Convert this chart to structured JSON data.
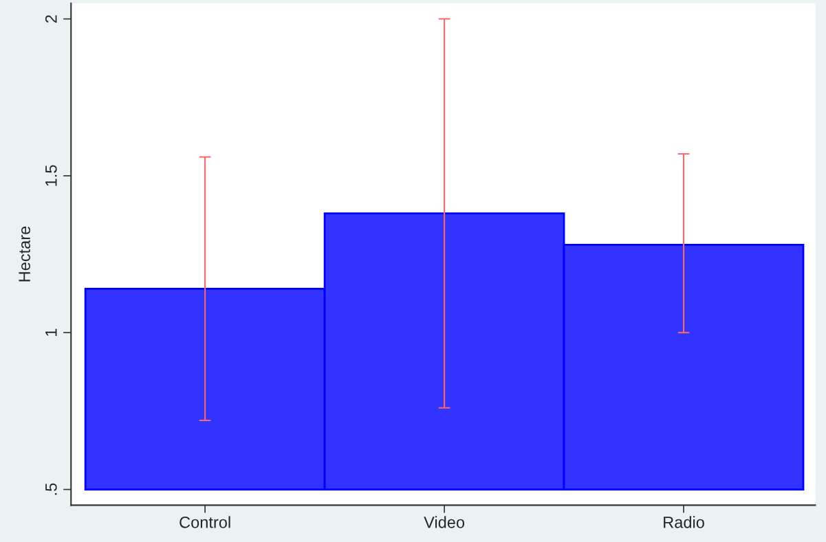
{
  "chart_data": {
    "type": "bar",
    "ylabel": "Hectare",
    "categories": [
      "Control",
      "Video",
      "Radio"
    ],
    "base": [
      0.5,
      0.5,
      0.5
    ],
    "values": [
      0.64,
      0.88,
      0.78
    ],
    "color": "#3333ff",
    "errors": [
      [
        0.72,
        1.56
      ],
      [
        0.76,
        2.0
      ],
      [
        1.0,
        1.57
      ]
    ],
    "ylim": [
      0.45,
      2.05
    ],
    "yticks": [
      {
        "value": 0.5,
        "label": ".5"
      },
      1,
      1.5,
      2
    ],
    "grid": false,
    "legend": false
  }
}
